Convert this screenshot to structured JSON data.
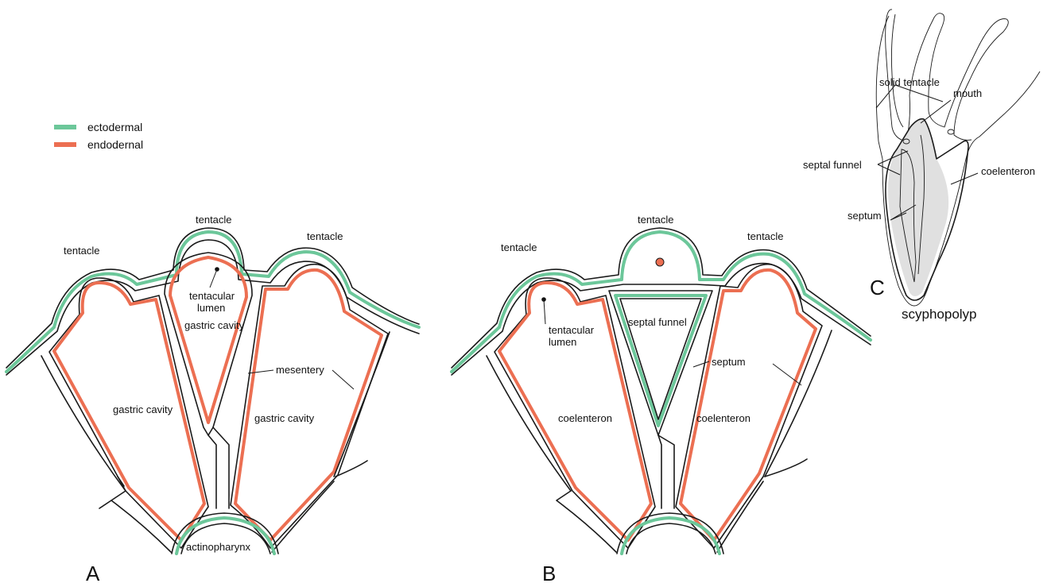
{
  "colors": {
    "ectodermal": "#6cc79a",
    "endodermal": "#ec6f52",
    "line": "#1a1a1a",
    "polyp_fill": "#e0e0e0"
  },
  "legend": {
    "items": [
      {
        "label": "ectodermal"
      },
      {
        "label": "endodernal"
      }
    ]
  },
  "panel_a": {
    "letter": "A",
    "labels": {
      "tentacle_left": "tentacle",
      "tentacle_center": "tentacle",
      "tentacle_right": "tentacle",
      "tentacular": "tentacular",
      "lumen": "lumen",
      "gastric_cavity_center": "gastric cavity",
      "gastric_cavity_left": "gastric cavity",
      "gastric_cavity_right": "gastric cavity",
      "mesentery": "mesentery",
      "actinopharynx": "actinopharynx"
    }
  },
  "panel_b": {
    "letter": "B",
    "labels": {
      "tentacle_left": "tentacle",
      "tentacle_center": "tentacle",
      "tentacle_right": "tentacle",
      "tentacular": "tentacular",
      "lumen": "lumen",
      "septal_funnel": "septal funnel",
      "septum": "septum",
      "coelenteron_left": "coelenteron",
      "coelenteron_right": "coelenteron"
    }
  },
  "panel_c": {
    "letter": "C",
    "caption": "scyphopolyp",
    "labels": {
      "solid_tentacle": "solid tentacle",
      "mouth": "mouth",
      "septal_funnel": "septal funnel",
      "coelenteron": "coelenteron",
      "septum": "septum"
    }
  }
}
